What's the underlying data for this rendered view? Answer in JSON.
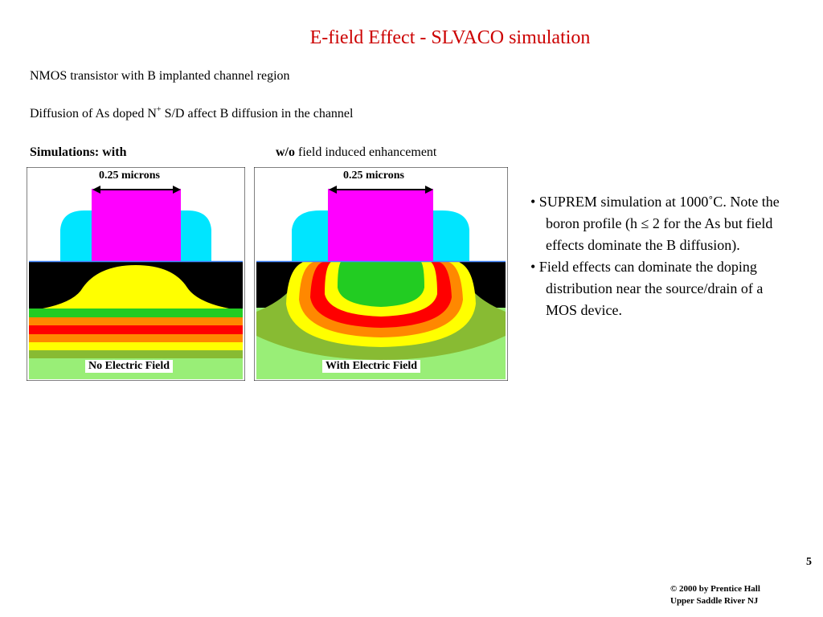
{
  "slide": {
    "title": "E-field Effect - SLVACO simulation",
    "line1": "NMOS transistor with B implanted channel region",
    "line2_pre": "Diffusion of As doped N",
    "line2_sup": "+",
    "line2_post": " S/D affect B diffusion in the channel",
    "sims_bold": "Simulations: with",
    "wo_bold": "w/o",
    "wo_rest": " field induced enhancement",
    "panel_left": {
      "label": "No  Electric Field",
      "micron_label": "0.25 microns"
    },
    "panel_right": {
      "label": "With Electric Field",
      "micron_label": "0.25 microns"
    },
    "bullets": [
      "• SUPREM simulation at 1000˚C. Note the boron profile (h ≤ 2 for the As but  field effects dominate the B diffusion).",
      "• Field effects can dominate the doping distribution near the source/drain of a MOS device."
    ],
    "page_number": "5",
    "copyright_line1": "© 2000 by Prentice Hall",
    "copyright_line2": "Upper Saddle River NJ"
  },
  "colors": {
    "title": "#cc0000",
    "gate": "#ff00ff",
    "oxide": "#00e5ff",
    "black": "#000000",
    "yellow": "#ffff00",
    "green": "#22cc22",
    "olive_green": "#88bb33",
    "light_green": "#99ee77",
    "orange": "#ff8800",
    "red": "#ff0000"
  }
}
